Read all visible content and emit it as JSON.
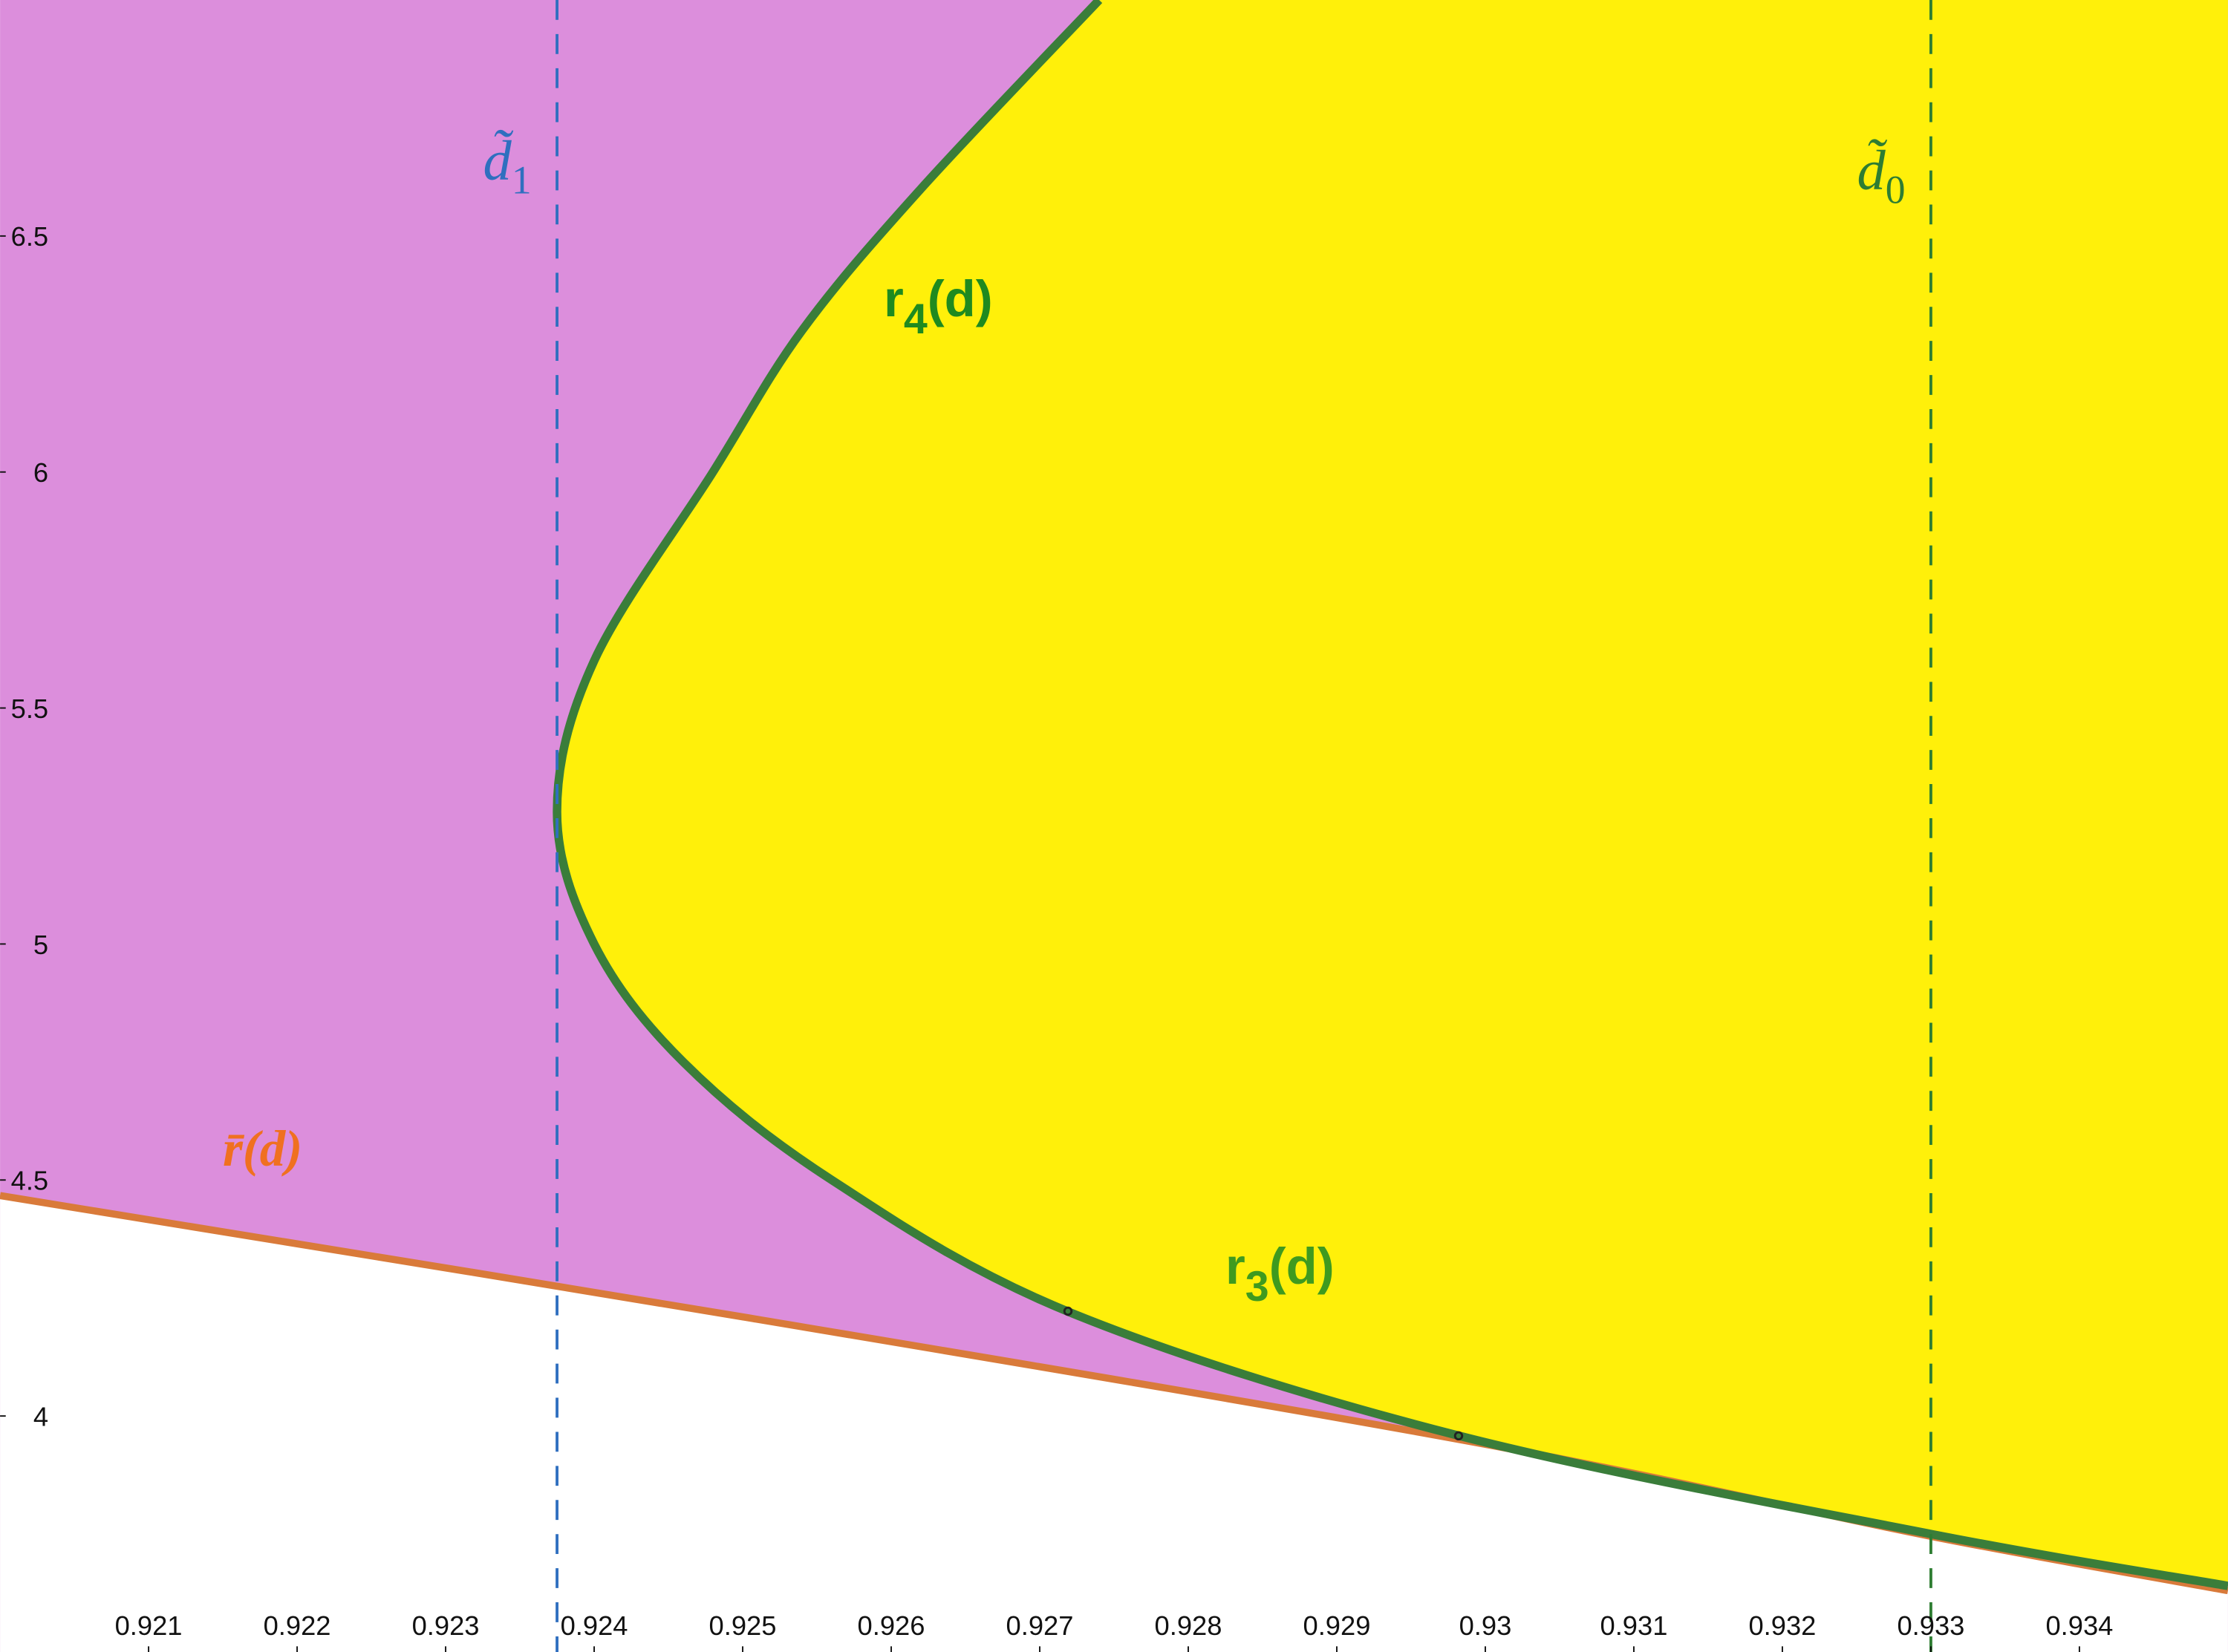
{
  "chart_data": {
    "type": "region",
    "xlim": [
      0.92,
      0.935
    ],
    "ylim": [
      3.5,
      7
    ],
    "xticks": [
      0.921,
      0.922,
      0.923,
      0.924,
      0.925,
      0.926,
      0.927,
      0.928,
      0.929,
      0.93,
      0.931,
      0.932,
      0.933,
      0.934
    ],
    "yticks": [
      4,
      4.5,
      5,
      5.5,
      6,
      6.5
    ],
    "background_color": "#dc8edc",
    "series": [
      {
        "name": "r̄(d)",
        "color": "#d97a3a",
        "fill_below": "#ffffff",
        "x": [
          0.92,
          0.925,
          0.93,
          0.933,
          0.935
        ],
        "values": [
          4.467,
          4.21,
          3.94,
          3.745,
          3.63
        ]
      },
      {
        "name": "r3/r4",
        "color": "#3a7d3a",
        "fill": "#fff00a",
        "x": [
          0.935,
          0.933,
          0.9298,
          0.9272,
          0.9256,
          0.9246,
          0.924,
          0.92375,
          0.924,
          0.9248,
          0.9254,
          0.9262,
          0.9274
        ],
        "values": [
          3.64,
          3.75,
          3.96,
          4.22,
          4.5,
          4.75,
          5.0,
          5.28,
          5.6,
          6.0,
          6.3,
          6.6,
          7.0
        ]
      }
    ],
    "points": {
      "x": [
        0.92719,
        0.92982
      ],
      "values": [
        4.222,
        3.958
      ]
    },
    "vlines": [
      {
        "x": 0.92375,
        "color": "#2f6fbf",
        "label": "d̃",
        "subscript": "1",
        "label_y": 6.62
      },
      {
        "x": 0.933,
        "color": "#2e7d32",
        "label": "d̃",
        "subscript": "0",
        "label_y": 6.6
      }
    ],
    "annotations": [
      {
        "base": "r",
        "subscript": "4",
        "rest": "(d)",
        "color": "#1f8a1f",
        "x": 0.92595,
        "y": 6.33
      },
      {
        "base": "r",
        "subscript": "3",
        "rest": "(d)",
        "color": "#3f9a1f",
        "x": 0.92825,
        "y": 4.28
      },
      {
        "base": "r̄",
        "rest": "(d)",
        "color": "#f07020",
        "x": 0.9215,
        "y": 4.53,
        "italic": true
      }
    ]
  }
}
